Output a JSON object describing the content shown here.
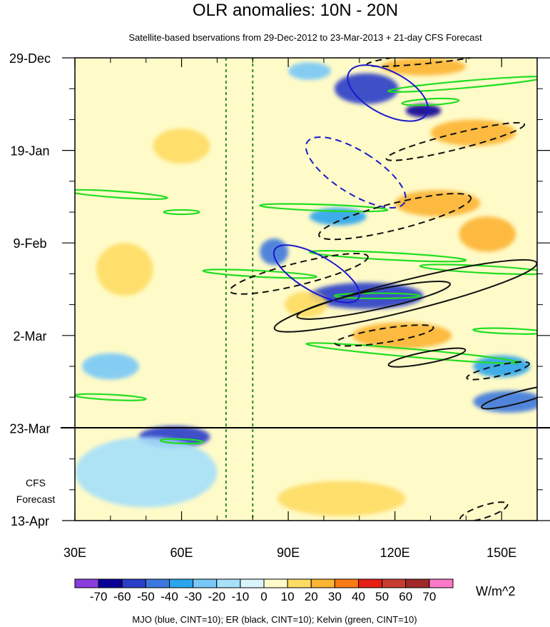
{
  "chart_data": {
    "type": "heatmap",
    "title": "OLR anomalies: 10N - 20N",
    "subtitle": "Satellite-based bservations from 29-Dec-2012 to 23-Mar-2013 + 21-day CFS Forecast",
    "xlabel": "",
    "ylabel": "",
    "x_ticks": [
      {
        "value": 30,
        "label": "30E"
      },
      {
        "value": 60,
        "label": "60E"
      },
      {
        "value": 90,
        "label": "90E"
      },
      {
        "value": 120,
        "label": "120E"
      },
      {
        "value": 150,
        "label": "150E"
      }
    ],
    "xlim": [
      30,
      160
    ],
    "y_ticks": [
      {
        "value": 0,
        "label": "29-Dec"
      },
      {
        "value": 21,
        "label": "19-Jan"
      },
      {
        "value": 42,
        "label": "9-Feb"
      },
      {
        "value": 63,
        "label": "2-Mar"
      },
      {
        "value": 84,
        "label": "23-Mar"
      },
      {
        "value": 105,
        "label": "13-Apr"
      }
    ],
    "ylim_days": [
      0,
      105
    ],
    "observation_end_day": 84,
    "forecast_label_lines": [
      "CFS",
      "Forecast"
    ],
    "reference_longitudes": [
      72.5,
      80
    ],
    "colorbar": {
      "levels": [
        "-70",
        "-60",
        "-50",
        "-40",
        "-30",
        "-20",
        "-10",
        "0",
        "10",
        "20",
        "30",
        "40",
        "50",
        "60",
        "70"
      ],
      "colors": [
        "#8c3cdc",
        "#0a0096",
        "#2a3ec8",
        "#3c78dc",
        "#2ba4ec",
        "#78c8f8",
        "#a6e0fa",
        "#d8f4fc",
        "#fffbc8",
        "#fedc64",
        "#fcb432",
        "#fa7a14",
        "#e61e14",
        "#c83c32",
        "#a02828",
        "#ff78c8"
      ],
      "units": "W/m^2"
    },
    "contour_note": "MJO (blue, CINT=10); ER (black, CINT=10); Kelvin (green, CINT=10)",
    "series": [
      {
        "name": "MJO",
        "color": "#1a1acc",
        "cint": 10
      },
      {
        "name": "ER",
        "color": "#111111",
        "cint": 10
      },
      {
        "name": "Kelvin",
        "color": "#22dd22",
        "cint": 10
      }
    ],
    "anomaly_blobs": [
      {
        "lon": 112,
        "day": 7,
        "rx": 9,
        "ry": 3.5,
        "value": -55
      },
      {
        "lon": 128,
        "day": 12,
        "rx": 5,
        "ry": 1.5,
        "value": -65
      },
      {
        "lon": 96,
        "day": 3,
        "rx": 6,
        "ry": 2,
        "value": -30
      },
      {
        "lon": 104,
        "day": 36,
        "rx": 8,
        "ry": 2,
        "value": -40
      },
      {
        "lon": 86,
        "day": 44,
        "rx": 4,
        "ry": 3,
        "value": -45
      },
      {
        "lon": 112,
        "day": 54,
        "rx": 16,
        "ry": 3,
        "value": -60
      },
      {
        "lon": 150,
        "day": 70,
        "rx": 8,
        "ry": 2.5,
        "value": -40
      },
      {
        "lon": 152,
        "day": 78,
        "rx": 10,
        "ry": 2.5,
        "value": -45
      },
      {
        "lon": 58,
        "day": 86,
        "rx": 10,
        "ry": 2.5,
        "value": -60
      },
      {
        "lon": 50,
        "day": 94,
        "rx": 20,
        "ry": 8,
        "value": -20
      },
      {
        "lon": 40,
        "day": 70,
        "rx": 8,
        "ry": 3,
        "value": -25
      },
      {
        "lon": 128,
        "day": 2,
        "rx": 12,
        "ry": 2,
        "value": 25
      },
      {
        "lon": 142,
        "day": 17,
        "rx": 12,
        "ry": 3,
        "value": 25
      },
      {
        "lon": 132,
        "day": 33,
        "rx": 12,
        "ry": 3,
        "value": 20
      },
      {
        "lon": 122,
        "day": 63,
        "rx": 14,
        "ry": 3,
        "value": 25
      },
      {
        "lon": 44,
        "day": 48,
        "rx": 8,
        "ry": 6,
        "value": 15
      },
      {
        "lon": 60,
        "day": 20,
        "rx": 8,
        "ry": 4,
        "value": 10
      },
      {
        "lon": 105,
        "day": 100,
        "rx": 18,
        "ry": 4,
        "value": 15
      },
      {
        "lon": 146,
        "day": 40,
        "rx": 8,
        "ry": 4,
        "value": 20
      },
      {
        "lon": 95,
        "day": 56,
        "rx": 6,
        "ry": 3,
        "value": 15
      }
    ],
    "mjo_contours": [
      {
        "lon": 118,
        "day": 8,
        "rx": 6,
        "ry": 10,
        "tilt": -62,
        "dashed": false
      },
      {
        "lon": 109,
        "day": 26,
        "rx": 6,
        "ry": 13,
        "tilt": -58,
        "dashed": true
      },
      {
        "lon": 98,
        "day": 49,
        "rx": 5,
        "ry": 11,
        "tilt": -60,
        "dashed": false
      }
    ],
    "er_contours": [
      {
        "lon": 137,
        "day": 19,
        "rx": 20,
        "ry": 1.8,
        "tilt": -14,
        "dashed": true
      },
      {
        "lon": 130,
        "day": 0,
        "rx": 18,
        "ry": 1.2,
        "tilt": -6,
        "dashed": true
      },
      {
        "lon": 120,
        "day": 36,
        "rx": 22,
        "ry": 3,
        "tilt": -14,
        "dashed": true
      },
      {
        "lon": 93,
        "day": 49,
        "rx": 20,
        "ry": 2.5,
        "tilt": -14,
        "dashed": true
      },
      {
        "lon": 114,
        "day": 55,
        "rx": 22,
        "ry": 2.2,
        "tilt": -12,
        "dashed": false
      },
      {
        "lon": 123,
        "day": 54,
        "rx": 38,
        "ry": 3.5,
        "tilt": -14,
        "dashed": false
      },
      {
        "lon": 117,
        "day": 63,
        "rx": 14,
        "ry": 1.6,
        "tilt": -9,
        "dashed": true
      },
      {
        "lon": 129,
        "day": 68,
        "rx": 11,
        "ry": 1.3,
        "tilt": -11,
        "dashed": false
      },
      {
        "lon": 149,
        "day": 71,
        "rx": 9,
        "ry": 1.2,
        "tilt": -13,
        "dashed": true
      },
      {
        "lon": 155,
        "day": 77,
        "rx": 11,
        "ry": 1.3,
        "tilt": -15,
        "dashed": false
      },
      {
        "lon": 145,
        "day": 103,
        "rx": 7,
        "ry": 1.4,
        "tilt": -18,
        "dashed": true
      }
    ],
    "kelvin_contours": [
      {
        "lon": 140,
        "day": 6,
        "rx": 22,
        "ry": 0.8,
        "tilt": -5
      },
      {
        "lon": 130,
        "day": 10,
        "rx": 8,
        "ry": 0.7,
        "tilt": -3
      },
      {
        "lon": 42,
        "day": 31,
        "rx": 14,
        "ry": 0.7,
        "tilt": 4
      },
      {
        "lon": 60,
        "day": 35,
        "rx": 5,
        "ry": 0.5,
        "tilt": 0
      },
      {
        "lon": 100,
        "day": 34,
        "rx": 18,
        "ry": 0.7,
        "tilt": 2
      },
      {
        "lon": 118,
        "day": 45,
        "rx": 22,
        "ry": 0.8,
        "tilt": 3
      },
      {
        "lon": 82,
        "day": 49,
        "rx": 16,
        "ry": 0.7,
        "tilt": 3
      },
      {
        "lon": 145,
        "day": 48,
        "rx": 18,
        "ry": 0.8,
        "tilt": 3
      },
      {
        "lon": 115,
        "day": 54,
        "rx": 12,
        "ry": 0.6,
        "tilt": 0
      },
      {
        "lon": 125,
        "day": 67,
        "rx": 30,
        "ry": 0.9,
        "tilt": 5
      },
      {
        "lon": 152,
        "day": 62,
        "rx": 10,
        "ry": 0.6,
        "tilt": 2
      },
      {
        "lon": 40,
        "day": 77,
        "rx": 10,
        "ry": 0.6,
        "tilt": 3
      },
      {
        "lon": 60,
        "day": 87,
        "rx": 6,
        "ry": 0.5,
        "tilt": 2
      }
    ]
  }
}
